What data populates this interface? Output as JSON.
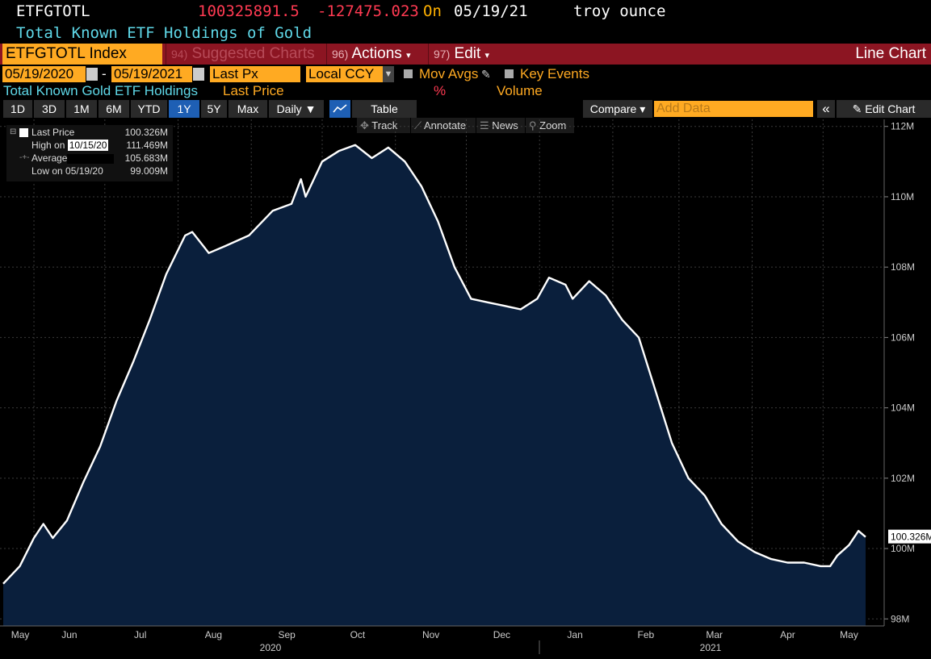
{
  "header": {
    "ticker": "ETFGTOTL",
    "price": "100325891.5",
    "change": "-127475.023",
    "on_label": "On",
    "date": "05/19/21",
    "unit": "troy ounce",
    "description": "Total Known ETF Holdings of Gold"
  },
  "toolbar": {
    "index_name": "ETFGTOTL Index",
    "suggested_num": "94)",
    "suggested_label": "Suggested Charts",
    "actions_num": "96)",
    "actions_label": "Actions",
    "edit_num": "97)",
    "edit_label": "Edit",
    "view_title": "Line Chart"
  },
  "controls": {
    "start_date": "05/19/2020",
    "end_date": "05/19/2021",
    "dash": "-",
    "field": "Last Px",
    "currency": "Local CCY",
    "mov_avgs": "Mov Avgs",
    "key_events": "Key Events",
    "series_name": "Total Known Gold ETF Holdings",
    "series_field": "Last Price",
    "pct": "%",
    "volume": "Volume"
  },
  "periods": [
    "1D",
    "3D",
    "1M",
    "6M",
    "YTD",
    "1Y",
    "5Y",
    "Max"
  ],
  "selected_period": "1Y",
  "period_toolbar": {
    "daily": "Daily ▼",
    "table": "Table",
    "compare": "Compare ▾",
    "add_data_placeholder": "Add Data",
    "collapse": "«",
    "edit_chart": "Edit Chart"
  },
  "chart_tools": {
    "track": "Track",
    "annotate": "Annotate",
    "news": "News",
    "zoom": "Zoom"
  },
  "legend": {
    "last_price_label": "Last Price",
    "last_price_value": "100.326M",
    "high_label": "High on",
    "high_date": "10/15/20",
    "high_value": "111.469M",
    "average_label": "Average",
    "average_value": "105.683M",
    "low_label": "Low on",
    "low_date": "05/19/20",
    "low_value": "99.009M"
  },
  "colors": {
    "background": "#000000",
    "line": "#ffffff",
    "area_fill": "#0a1f3c",
    "accent_orange": "#ffaa22",
    "bar_red": "#8c1522",
    "price_red": "#ff3a52",
    "cyan": "#5fd8e8"
  },
  "chart_data": {
    "type": "area",
    "series": [
      {
        "name": "Last Price"
      }
    ],
    "x_tick_labels": [
      "May",
      "Jun",
      "Jul",
      "Aug",
      "Sep",
      "Oct",
      "Nov",
      "Dec",
      "Jan",
      "Feb",
      "Mar",
      "Apr",
      "May"
    ],
    "year_labels": [
      "2020",
      "2021"
    ],
    "y_tick_labels": [
      "98M",
      "100M",
      "102M",
      "104M",
      "106M",
      "108M",
      "110M",
      "112M"
    ],
    "ylim": [
      97.8,
      112.2
    ],
    "last_value_label": "100.326M",
    "points": [
      [
        "2020-05-19",
        99.0
      ],
      [
        "2020-05-26",
        99.5
      ],
      [
        "2020-06-01",
        100.3
      ],
      [
        "2020-06-05",
        100.7
      ],
      [
        "2020-06-09",
        100.3
      ],
      [
        "2020-06-15",
        100.8
      ],
      [
        "2020-06-22",
        101.9
      ],
      [
        "2020-06-29",
        102.9
      ],
      [
        "2020-07-06",
        104.2
      ],
      [
        "2020-07-13",
        105.3
      ],
      [
        "2020-07-20",
        106.5
      ],
      [
        "2020-07-27",
        107.8
      ],
      [
        "2020-08-04",
        108.9
      ],
      [
        "2020-08-07",
        109.0
      ],
      [
        "2020-08-14",
        108.4
      ],
      [
        "2020-08-21",
        108.6
      ],
      [
        "2020-08-31",
        108.9
      ],
      [
        "2020-09-10",
        109.6
      ],
      [
        "2020-09-18",
        109.8
      ],
      [
        "2020-09-22",
        110.5
      ],
      [
        "2020-09-24",
        110.0
      ],
      [
        "2020-10-01",
        111.0
      ],
      [
        "2020-10-08",
        111.3
      ],
      [
        "2020-10-15",
        111.47
      ],
      [
        "2020-10-22",
        111.1
      ],
      [
        "2020-10-29",
        111.4
      ],
      [
        "2020-11-05",
        111.0
      ],
      [
        "2020-11-12",
        110.3
      ],
      [
        "2020-11-19",
        109.3
      ],
      [
        "2020-11-26",
        108.0
      ],
      [
        "2020-12-03",
        107.1
      ],
      [
        "2020-12-10",
        107.0
      ],
      [
        "2020-12-17",
        106.9
      ],
      [
        "2020-12-24",
        106.8
      ],
      [
        "2020-12-31",
        107.1
      ],
      [
        "2021-01-05",
        107.7
      ],
      [
        "2021-01-12",
        107.5
      ],
      [
        "2021-01-15",
        107.1
      ],
      [
        "2021-01-22",
        107.6
      ],
      [
        "2021-01-29",
        107.2
      ],
      [
        "2021-02-05",
        106.5
      ],
      [
        "2021-02-12",
        106.0
      ],
      [
        "2021-02-19",
        104.5
      ],
      [
        "2021-02-26",
        103.0
      ],
      [
        "2021-03-05",
        102.0
      ],
      [
        "2021-03-12",
        101.5
      ],
      [
        "2021-03-19",
        100.7
      ],
      [
        "2021-03-26",
        100.2
      ],
      [
        "2021-04-02",
        99.9
      ],
      [
        "2021-04-09",
        99.7
      ],
      [
        "2021-04-16",
        99.6
      ],
      [
        "2021-04-23",
        99.6
      ],
      [
        "2021-04-30",
        99.5
      ],
      [
        "2021-05-04",
        99.5
      ],
      [
        "2021-05-07",
        99.8
      ],
      [
        "2021-05-12",
        100.1
      ],
      [
        "2021-05-16",
        100.5
      ],
      [
        "2021-05-19",
        100.33
      ]
    ]
  }
}
